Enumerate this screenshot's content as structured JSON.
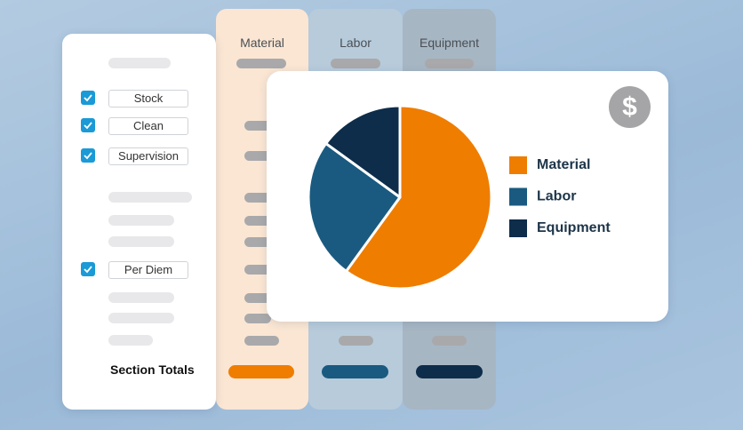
{
  "columns": [
    "Material",
    "Labor",
    "Equipment"
  ],
  "checklist": [
    "Stock",
    "Clean",
    "Supervision",
    "Per Diem"
  ],
  "section_totals": "Section Totals",
  "badge": "$",
  "chart_data": {
    "type": "pie",
    "categories": [
      "Material",
      "Labor",
      "Equipment"
    ],
    "values": [
      60,
      25,
      15
    ],
    "colors": [
      "#ef7d00",
      "#1a5a80",
      "#0d2d4a"
    ]
  }
}
